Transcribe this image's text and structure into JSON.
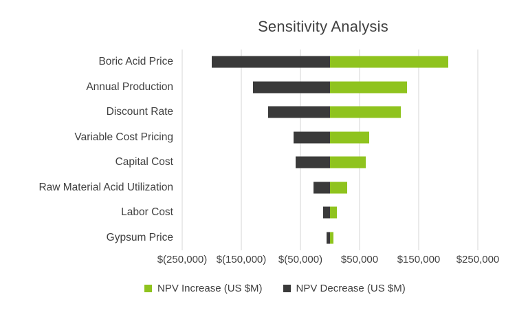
{
  "chart_data": {
    "type": "bar",
    "orientation": "horizontal",
    "variant": "tornado",
    "title": "Sensitivity Analysis",
    "categories": [
      "Boric Acid Price",
      "Annual Production",
      "Discount Rate",
      "Variable Cost Pricing",
      "Capital Cost",
      "Raw Material Acid Utilization",
      "Labor Cost",
      "Gypsum Price"
    ],
    "series": [
      {
        "name": "NPV Increase (US $M)",
        "color": "#8fc31e",
        "values": [
          200000,
          130000,
          120000,
          66000,
          61000,
          29000,
          12000,
          6000
        ]
      },
      {
        "name": "NPV Decrease (US $M)",
        "color": "#3a3a3a",
        "values": [
          -200000,
          -130000,
          -105000,
          -62000,
          -58000,
          -28000,
          -12000,
          -6000
        ]
      }
    ],
    "x_ticks": [
      {
        "value": -250000,
        "label": "$(250,000)"
      },
      {
        "value": -150000,
        "label": "$(150,000)"
      },
      {
        "value": -50000,
        "label": "$(50,000)"
      },
      {
        "value": 50000,
        "label": "$50,000"
      },
      {
        "value": 150000,
        "label": "$150,000"
      },
      {
        "value": 250000,
        "label": "$250,000"
      }
    ],
    "xlim": [
      -250000,
      250000
    ],
    "grid": true,
    "legend_position": "bottom",
    "gridline_color": "#d6d6d6",
    "background_color": "#ffffff"
  }
}
